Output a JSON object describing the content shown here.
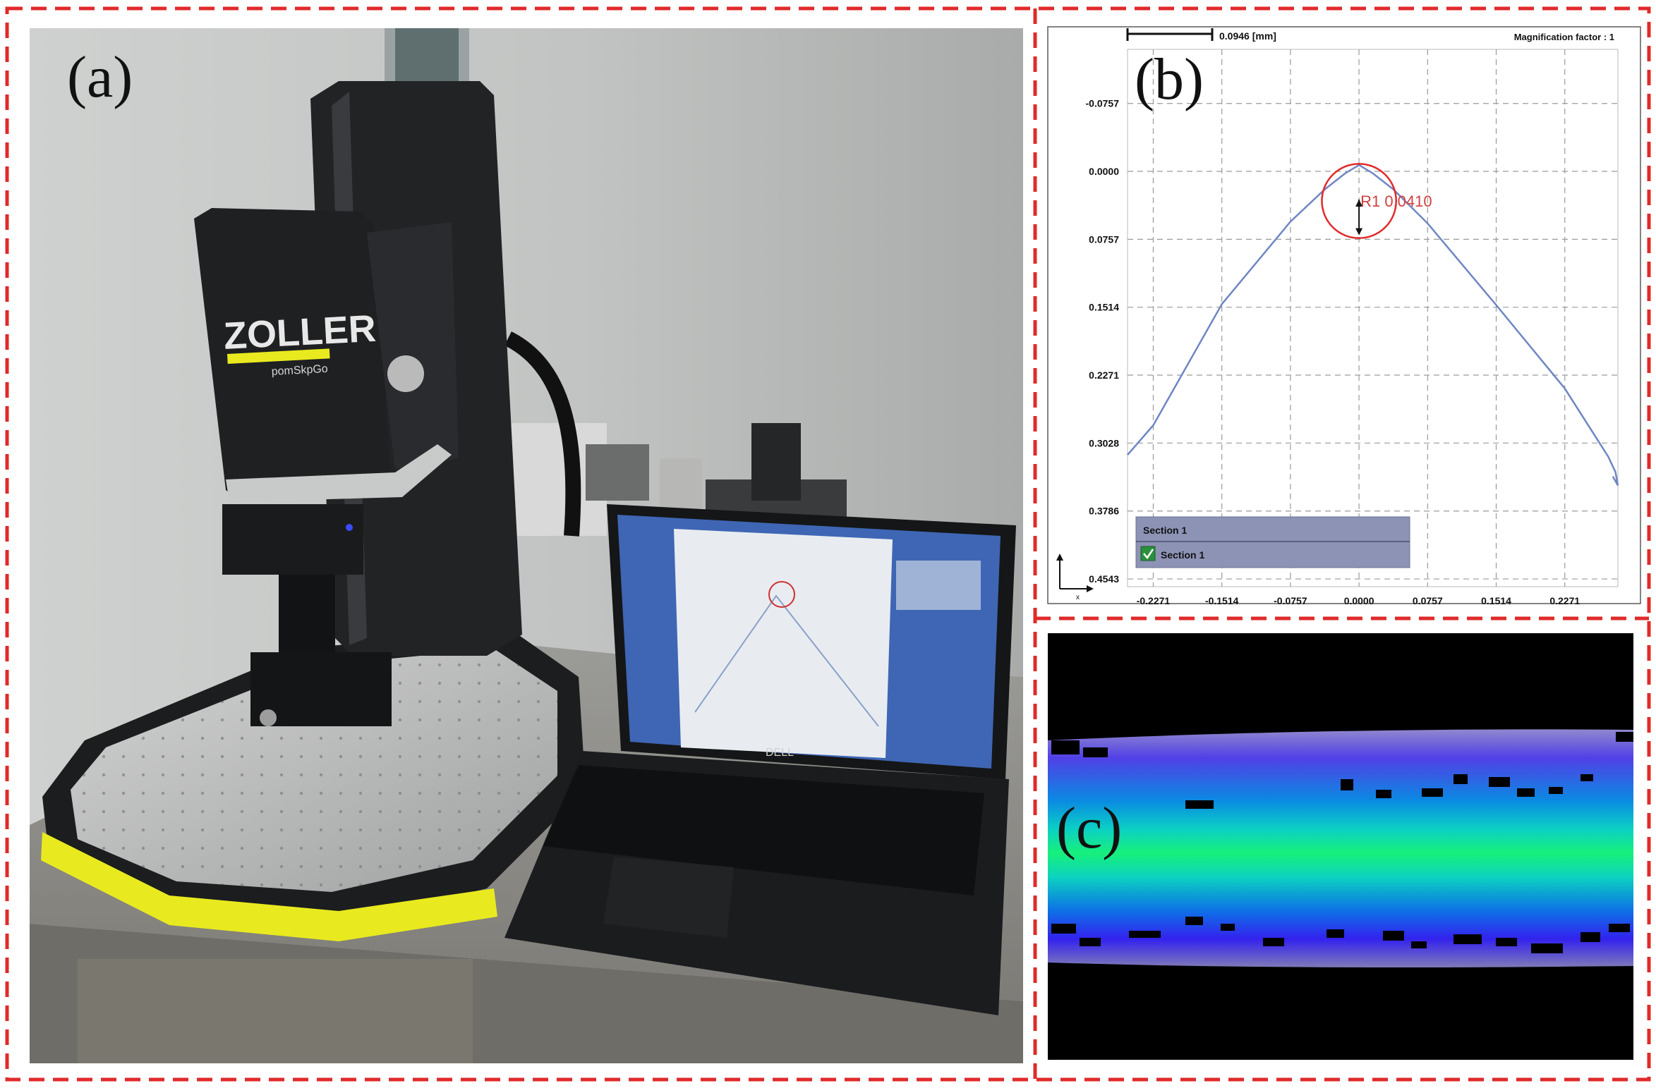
{
  "panels": {
    "a": {
      "label": "(a)"
    },
    "b": {
      "label": "(b)"
    },
    "c": {
      "label": "(c)"
    }
  },
  "photo": {
    "brand_logo": "ZOLLER",
    "product_label": "pomSkpGo",
    "laptop_logo": "DELL"
  },
  "profile": {
    "scale_bar_label": "0.0946 [mm]",
    "magnification_label": "Magnification factor : 1",
    "radius_label": "R1 0.0410",
    "section_header": "Section 1",
    "section_item": "Section 1",
    "coord_axis_x": "x"
  },
  "chart_data": {
    "type": "line",
    "title": "",
    "xlabel": "",
    "ylabel": "",
    "x_ticks": [
      "-0.2271",
      "-0.1514",
      "-0.0757",
      "0.0000",
      "0.0757",
      "0.1514",
      "0.2271"
    ],
    "y_ticks": [
      "-0.0757",
      "0.0000",
      "0.0757",
      "0.1514",
      "0.2271",
      "0.3028",
      "0.3786",
      "0.4543"
    ],
    "xlim": [
      -0.2555,
      0.2857
    ],
    "ylim": [
      -0.136,
      0.4629
    ],
    "y_axis_inverted": true,
    "grid": true,
    "series": [
      {
        "color": "#6f86c4",
        "x": [
          -0.2555,
          -0.2271,
          -0.1514,
          -0.0757,
          -0.0378,
          -0.015,
          0.0,
          0.015,
          0.0378,
          0.0757,
          0.1514,
          0.2271,
          0.275,
          0.283,
          0.2857,
          0.28
        ],
        "y": [
          0.316,
          0.283,
          0.148,
          0.056,
          0.02,
          0.002,
          -0.007,
          0.002,
          0.02,
          0.058,
          0.149,
          0.242,
          0.318,
          0.335,
          0.35,
          0.34
        ]
      }
    ],
    "annotations": [
      {
        "type": "circle",
        "color": "#e02a2a",
        "center": [
          0.0,
          0.033
        ],
        "radius": 0.041,
        "label": "R1 0.0410"
      }
    ],
    "colors": {
      "profile": "#6f86c4",
      "fit_circle": "#e02a2a",
      "frame": "#e02a2a"
    }
  }
}
